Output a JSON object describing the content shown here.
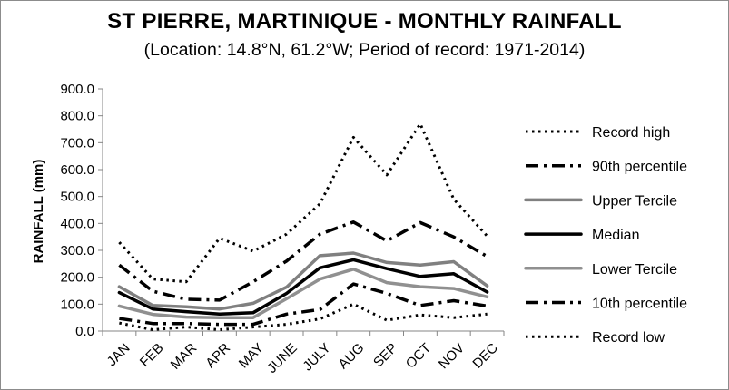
{
  "chart_data": {
    "type": "line",
    "title": "ST PIERRE, MARTINIQUE - MONTHLY RAINFALL",
    "subtitle": "(Location: 14.8°N, 61.2°W; Period of record: 1971-2014)",
    "xlabel": "",
    "ylabel": "RAINFALL (mm)",
    "ylim": [
      0,
      900
    ],
    "yticks": [
      "0.0",
      "100.0",
      "200.0",
      "300.0",
      "400.0",
      "500.0",
      "600.0",
      "700.0",
      "800.0",
      "900.0"
    ],
    "categories": [
      "JAN",
      "FEB",
      "MAR",
      "APR",
      "MAY",
      "JUNE",
      "JULY",
      "AUG",
      "SEP",
      "OCT",
      "NOV",
      "DEC"
    ],
    "grid": false,
    "legend_position": "right",
    "series": [
      {
        "name": "Record high",
        "style": "dotted",
        "color": "#000000",
        "values": [
          330,
          193,
          183,
          345,
          297,
          360,
          473,
          720,
          580,
          770,
          490,
          353
        ]
      },
      {
        "name": "90th percentile",
        "style": "dashdot",
        "color": "#000000",
        "values": [
          245,
          148,
          118,
          115,
          183,
          260,
          360,
          405,
          335,
          403,
          350,
          277
        ]
      },
      {
        "name": "Upper Tercile",
        "style": "solid",
        "color": "#808080",
        "values": [
          165,
          95,
          90,
          82,
          103,
          163,
          280,
          290,
          255,
          245,
          258,
          168
        ]
      },
      {
        "name": "Median",
        "style": "solid",
        "color": "#000000",
        "values": [
          143,
          82,
          72,
          63,
          68,
          140,
          235,
          265,
          232,
          203,
          213,
          145
        ]
      },
      {
        "name": "Lower Tercile",
        "style": "solid",
        "color": "#909090",
        "values": [
          93,
          62,
          52,
          50,
          50,
          120,
          193,
          230,
          180,
          165,
          158,
          127
        ]
      },
      {
        "name": "10th percentile",
        "style": "dashdot",
        "color": "#000000",
        "values": [
          47,
          28,
          28,
          25,
          25,
          63,
          80,
          175,
          140,
          95,
          113,
          93
        ]
      },
      {
        "name": "Record low",
        "style": "dotted",
        "color": "#000000",
        "values": [
          30,
          5,
          15,
          5,
          15,
          25,
          45,
          100,
          40,
          60,
          50,
          63
        ]
      }
    ]
  }
}
